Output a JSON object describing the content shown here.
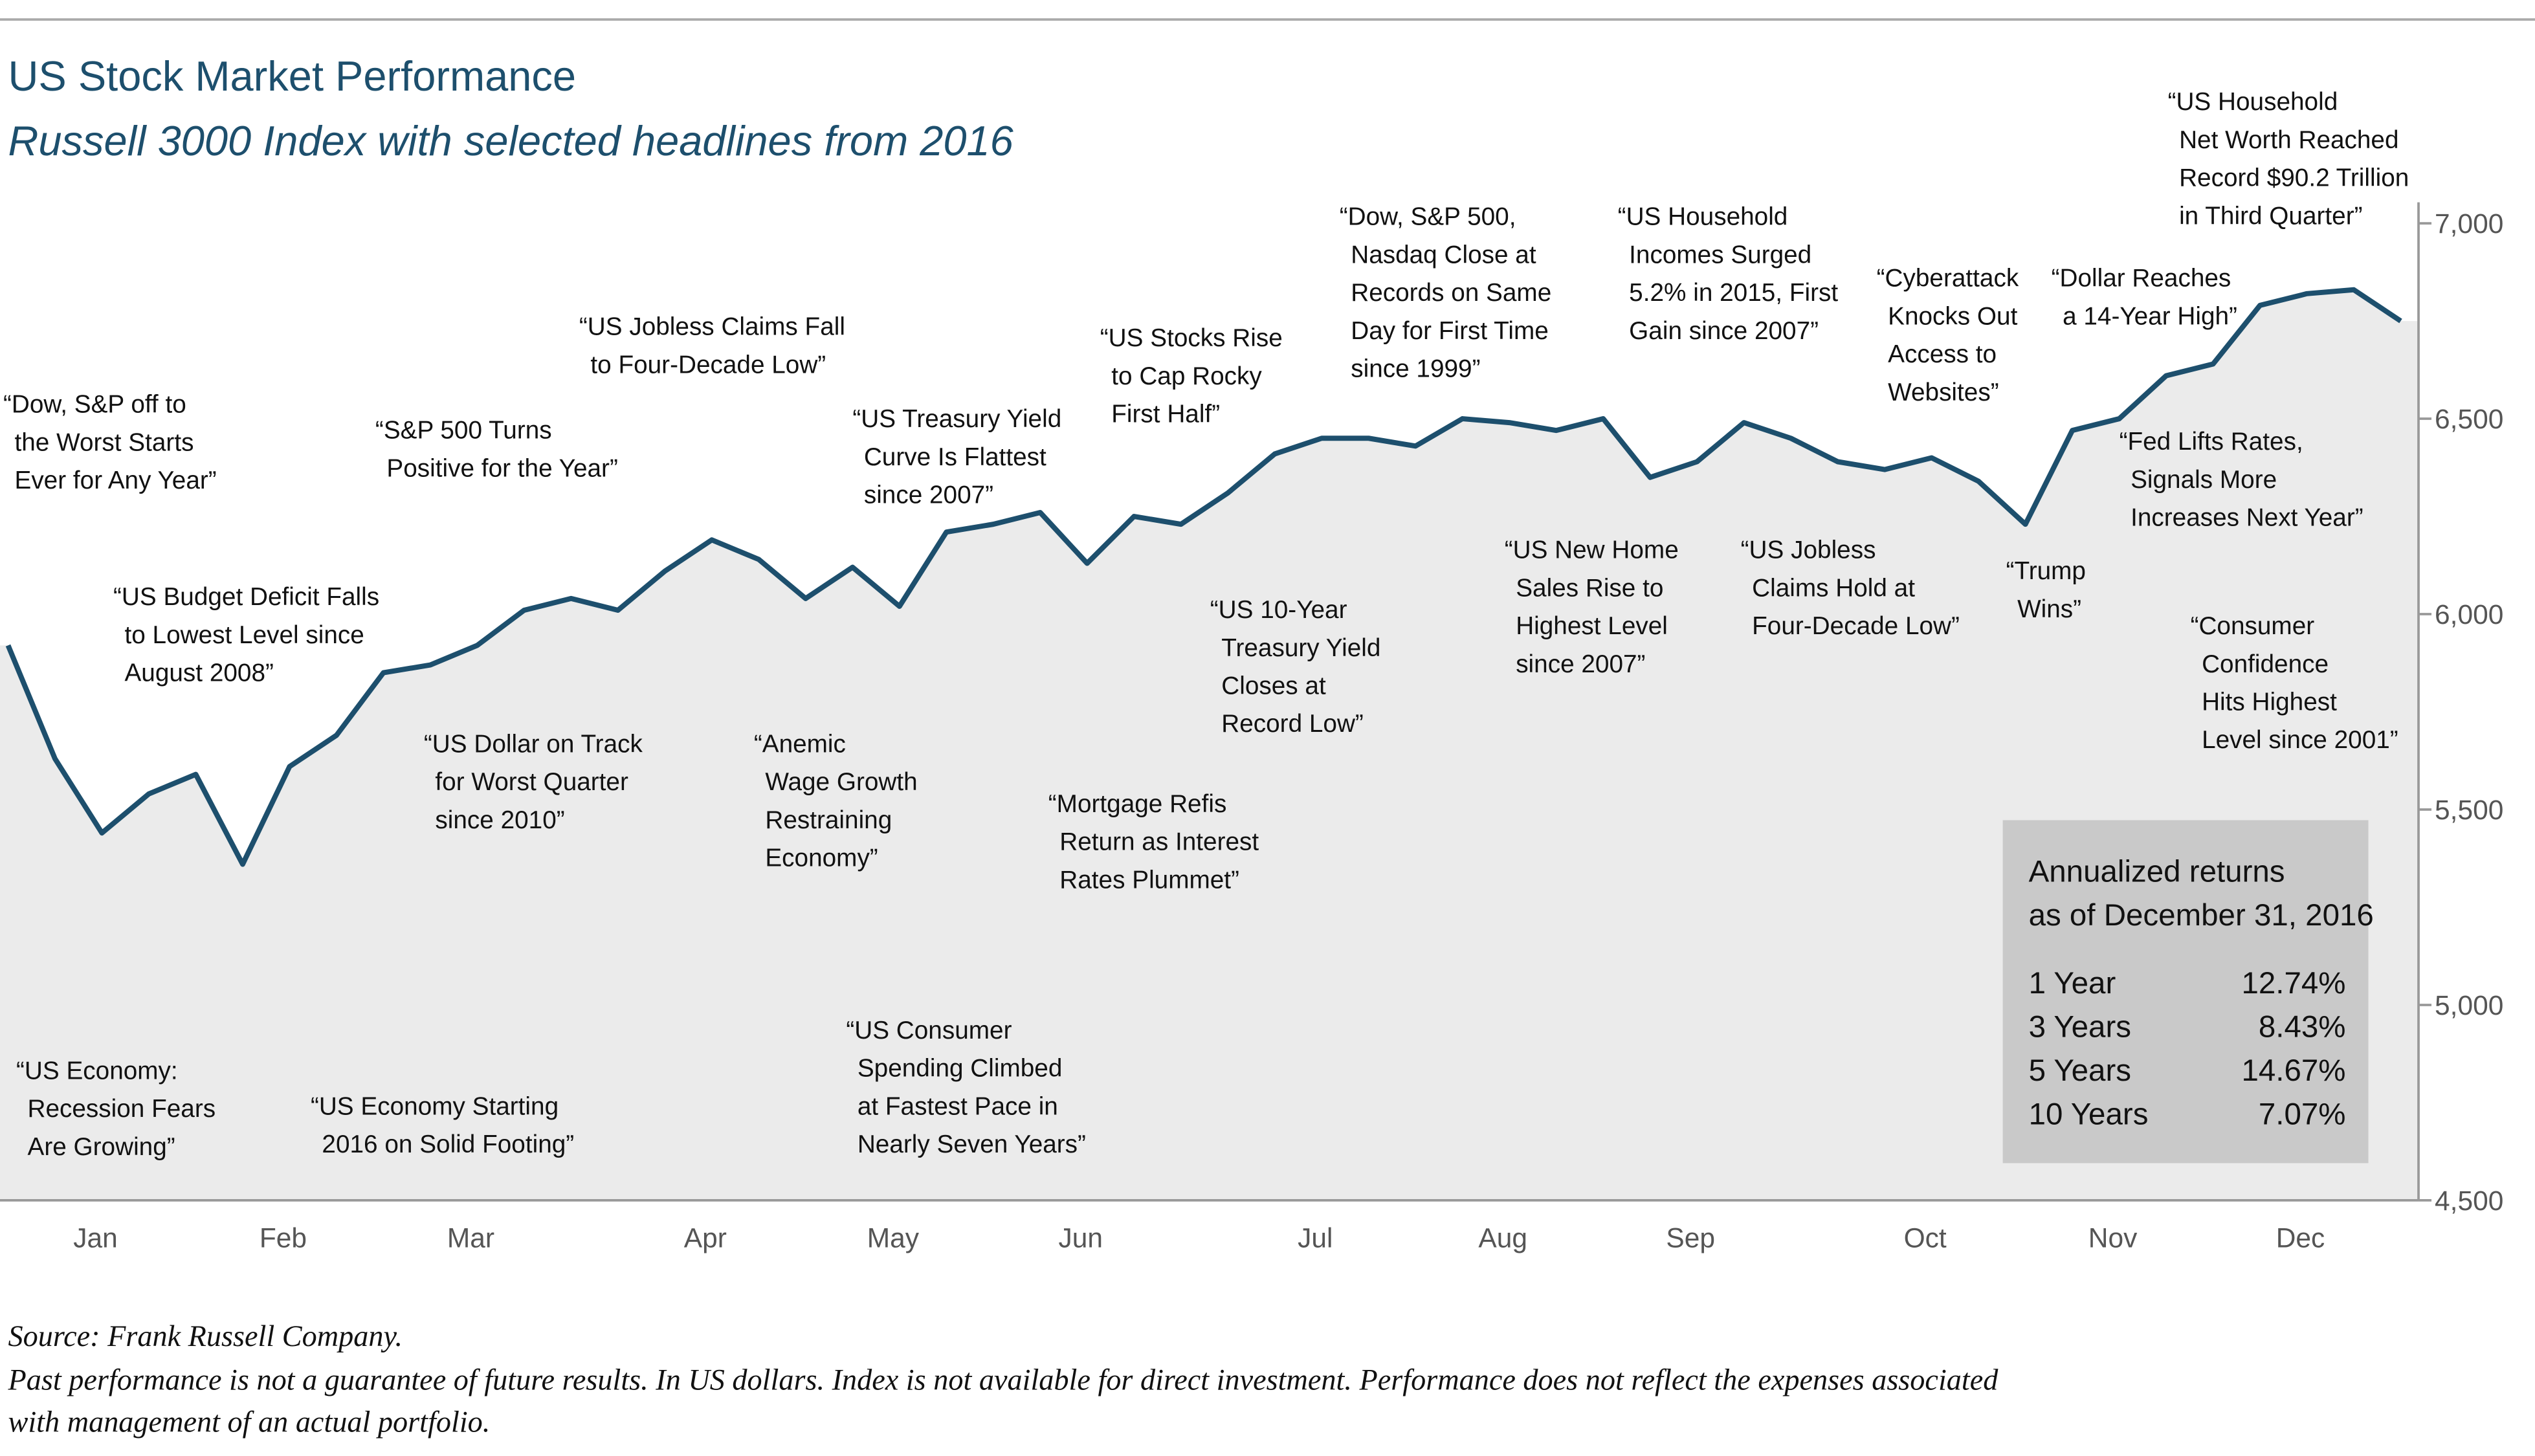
{
  "chart_data": {
    "type": "line",
    "title": "US Stock Market Performance",
    "subtitle": "Russell 3000 Index with selected headlines from 2016",
    "categories": [
      null,
      null,
      "Jan",
      null,
      null,
      null,
      "Feb",
      null,
      null,
      null,
      "Mar",
      null,
      null,
      null,
      null,
      "Apr",
      null,
      null,
      null,
      "May",
      null,
      null,
      null,
      "Jun",
      null,
      null,
      null,
      null,
      "Jul",
      null,
      null,
      null,
      "Aug",
      null,
      null,
      null,
      "Sep",
      null,
      null,
      null,
      null,
      "Oct",
      null,
      null,
      null,
      "Nov",
      null,
      null,
      null,
      "Dec",
      null,
      null
    ],
    "values": [
      5920,
      5630,
      5440,
      5540,
      5590,
      5360,
      5610,
      5690,
      5850,
      5870,
      5920,
      6010,
      6040,
      6010,
      6110,
      6190,
      6140,
      6040,
      6120,
      6020,
      6210,
      6230,
      6260,
      6130,
      6250,
      6230,
      6310,
      6410,
      6450,
      6450,
      6430,
      6500,
      6490,
      6470,
      6500,
      6350,
      6390,
      6490,
      6450,
      6390,
      6370,
      6400,
      6340,
      6230,
      6470,
      6500,
      6610,
      6640,
      6790,
      6820,
      6830,
      6750
    ],
    "color": "#1d4f6d",
    "area_color": "#ebebeb",
    "ylim": [
      4500,
      7000
    ],
    "yticks": [
      {
        "value": 4500,
        "label": "4,500"
      },
      {
        "value": 5000,
        "label": "5,000"
      },
      {
        "value": 5500,
        "label": "5,500"
      },
      {
        "value": 6000,
        "label": "6,000"
      },
      {
        "value": 6500,
        "label": "6,500"
      },
      {
        "value": 7000,
        "label": "7,000"
      }
    ],
    "annotations": [
      [
        "“Dow, S&P off to",
        "the Worst Starts",
        "Ever for Any Year”"
      ],
      [
        "“US Budget Deficit Falls",
        "to Lowest Level since",
        "August 2008”"
      ],
      [
        "“US Economy:",
        "Recession Fears",
        "Are Growing”"
      ],
      [
        "“US Economy Starting",
        "2016 on Solid Footing”"
      ],
      [
        "“S&P 500 Turns",
        "Positive for the Year”"
      ],
      [
        "“US Dollar on Track",
        "for Worst Quarter",
        "since 2010”"
      ],
      [
        "“US Jobless Claims Fall",
        "to Four-Decade Low”"
      ],
      [
        "“Anemic",
        "Wage Growth",
        "Restraining",
        "Economy”"
      ],
      [
        "“US Treasury Yield",
        "Curve Is Flattest",
        "since 2007”"
      ],
      [
        "“US Consumer",
        "Spending Climbed",
        "at Fastest Pace in",
        "Nearly Seven Years”"
      ],
      [
        "“Mortgage Refis",
        "Return as Interest",
        "Rates Plummet”"
      ],
      [
        "“US Stocks Rise",
        "to Cap Rocky",
        "First Half”"
      ],
      [
        "“US 10-Year",
        "Treasury Yield",
        "Closes at",
        "Record Low”"
      ],
      [
        "“Dow, S&P 500,",
        "Nasdaq Close at",
        "Records on Same",
        "Day for First Time",
        "since 1999”"
      ],
      [
        "“US New Home",
        "Sales Rise to",
        "Highest Level",
        "since 2007”"
      ],
      [
        "“US Household",
        "Incomes Surged",
        "5.2% in 2015, First",
        "Gain since 2007”"
      ],
      [
        "“US Jobless",
        "Claims Hold at",
        "Four-Decade Low”"
      ],
      [
        "“Cyberattack",
        "Knocks Out",
        "Access to",
        "Websites”"
      ],
      [
        "“Trump",
        "Wins”"
      ],
      [
        "“Dollar Reaches",
        "a 14-Year High”"
      ],
      [
        "“Fed Lifts Rates,",
        "Signals More",
        "Increases Next Year”"
      ],
      [
        "“Consumer",
        "Confidence",
        "Hits Highest",
        "Level since 2001”"
      ],
      [
        "“US Household",
        "Net Worth Reached",
        "Record $90.2 Trillion",
        "in Third Quarter”"
      ]
    ],
    "returns_table": {
      "title": [
        "Annualized returns",
        "as of December 31, 2016"
      ],
      "rows": [
        [
          "1 Year",
          "12.74%"
        ],
        [
          "3 Years",
          "8.43%"
        ],
        [
          "5 Years",
          "14.67%"
        ],
        [
          "10 Years",
          "7.07%"
        ]
      ]
    },
    "source": "Source: Frank Russell Company.",
    "note": [
      "Past performance is not a guarantee of future results. In US dollars. Index is not available for direct investment. Performance does not reflect the expenses associated",
      "with management of an actual portfolio."
    ]
  }
}
